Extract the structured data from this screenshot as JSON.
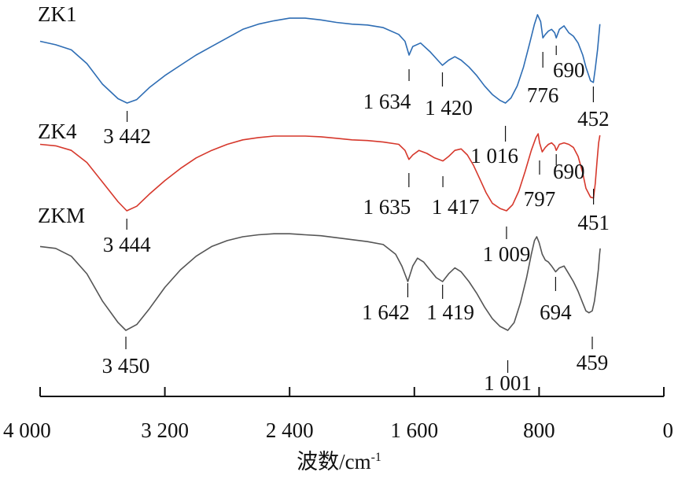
{
  "chart_data": {
    "type": "line",
    "xlabel": "波数/cm",
    "xlabel_superscript": "-1",
    "xlim": [
      4000,
      0
    ],
    "x_reversed": true,
    "x_ticks": [
      {
        "value": 4000,
        "label": "4 000"
      },
      {
        "value": 3200,
        "label": "3 200"
      },
      {
        "value": 2400,
        "label": "2 400"
      },
      {
        "value": 1600,
        "label": "1 600"
      },
      {
        "value": 800,
        "label": "800"
      },
      {
        "value": 0,
        "label": "0"
      }
    ],
    "grid": false,
    "series": [
      {
        "name": "ZK1",
        "color": "#2e6db4",
        "points": [
          [
            4000,
            0.72
          ],
          [
            3900,
            0.68
          ],
          [
            3800,
            0.62
          ],
          [
            3700,
            0.46
          ],
          [
            3600,
            0.22
          ],
          [
            3500,
            0.05
          ],
          [
            3442,
            0.0
          ],
          [
            3380,
            0.04
          ],
          [
            3300,
            0.18
          ],
          [
            3200,
            0.32
          ],
          [
            3100,
            0.44
          ],
          [
            3000,
            0.56
          ],
          [
            2900,
            0.66
          ],
          [
            2800,
            0.76
          ],
          [
            2700,
            0.86
          ],
          [
            2600,
            0.92
          ],
          [
            2500,
            0.96
          ],
          [
            2400,
            0.99
          ],
          [
            2300,
            0.99
          ],
          [
            2200,
            0.97
          ],
          [
            2100,
            0.94
          ],
          [
            2000,
            0.92
          ],
          [
            1900,
            0.91
          ],
          [
            1800,
            0.88
          ],
          [
            1700,
            0.8
          ],
          [
            1660,
            0.72
          ],
          [
            1634,
            0.56
          ],
          [
            1610,
            0.66
          ],
          [
            1560,
            0.7
          ],
          [
            1500,
            0.6
          ],
          [
            1450,
            0.5
          ],
          [
            1420,
            0.44
          ],
          [
            1380,
            0.5
          ],
          [
            1340,
            0.54
          ],
          [
            1300,
            0.5
          ],
          [
            1250,
            0.42
          ],
          [
            1200,
            0.32
          ],
          [
            1150,
            0.2
          ],
          [
            1100,
            0.1
          ],
          [
            1050,
            0.03
          ],
          [
            1016,
            0.0
          ],
          [
            980,
            0.06
          ],
          [
            940,
            0.2
          ],
          [
            900,
            0.42
          ],
          [
            860,
            0.7
          ],
          [
            830,
            0.92
          ],
          [
            810,
            1.03
          ],
          [
            790,
            0.95
          ],
          [
            776,
            0.76
          ],
          [
            760,
            0.8
          ],
          [
            740,
            0.84
          ],
          [
            720,
            0.86
          ],
          [
            700,
            0.82
          ],
          [
            690,
            0.76
          ],
          [
            670,
            0.86
          ],
          [
            640,
            0.9
          ],
          [
            610,
            0.82
          ],
          [
            580,
            0.78
          ],
          [
            550,
            0.7
          ],
          [
            520,
            0.56
          ],
          [
            500,
            0.42
          ],
          [
            470,
            0.26
          ],
          [
            452,
            0.24
          ],
          [
            440,
            0.4
          ],
          [
            425,
            0.62
          ],
          [
            415,
            0.82
          ],
          [
            410,
            0.92
          ]
        ],
        "peaks": [
          {
            "x": 3442,
            "label": "3 442"
          },
          {
            "x": 1634,
            "label": "1 634"
          },
          {
            "x": 1420,
            "label": "1 420"
          },
          {
            "x": 1016,
            "label": "1 016"
          },
          {
            "x": 776,
            "label": "776"
          },
          {
            "x": 690,
            "label": "690"
          },
          {
            "x": 452,
            "label": "452"
          }
        ]
      },
      {
        "name": "ZK4",
        "color": "#d6382c",
        "points": [
          [
            4000,
            0.88
          ],
          [
            3900,
            0.86
          ],
          [
            3800,
            0.8
          ],
          [
            3700,
            0.64
          ],
          [
            3600,
            0.38
          ],
          [
            3500,
            0.12
          ],
          [
            3444,
            0.0
          ],
          [
            3380,
            0.06
          ],
          [
            3300,
            0.22
          ],
          [
            3200,
            0.4
          ],
          [
            3100,
            0.56
          ],
          [
            3000,
            0.7
          ],
          [
            2900,
            0.8
          ],
          [
            2800,
            0.88
          ],
          [
            2700,
            0.94
          ],
          [
            2600,
            0.97
          ],
          [
            2500,
            0.99
          ],
          [
            2400,
            0.99
          ],
          [
            2300,
            0.99
          ],
          [
            2200,
            0.98
          ],
          [
            2100,
            0.96
          ],
          [
            2000,
            0.94
          ],
          [
            1900,
            0.93
          ],
          [
            1800,
            0.91
          ],
          [
            1700,
            0.88
          ],
          [
            1660,
            0.8
          ],
          [
            1635,
            0.68
          ],
          [
            1610,
            0.74
          ],
          [
            1570,
            0.8
          ],
          [
            1520,
            0.76
          ],
          [
            1470,
            0.7
          ],
          [
            1417,
            0.66
          ],
          [
            1380,
            0.72
          ],
          [
            1340,
            0.8
          ],
          [
            1300,
            0.82
          ],
          [
            1260,
            0.74
          ],
          [
            1220,
            0.6
          ],
          [
            1180,
            0.42
          ],
          [
            1140,
            0.24
          ],
          [
            1100,
            0.1
          ],
          [
            1050,
            0.03
          ],
          [
            1009,
            0.0
          ],
          [
            970,
            0.08
          ],
          [
            930,
            0.26
          ],
          [
            890,
            0.52
          ],
          [
            850,
            0.8
          ],
          [
            820,
            0.97
          ],
          [
            806,
            1.02
          ],
          [
            797,
            0.9
          ],
          [
            780,
            0.78
          ],
          [
            760,
            0.84
          ],
          [
            740,
            0.88
          ],
          [
            720,
            0.9
          ],
          [
            700,
            0.86
          ],
          [
            690,
            0.8
          ],
          [
            670,
            0.88
          ],
          [
            640,
            0.9
          ],
          [
            610,
            0.88
          ],
          [
            580,
            0.84
          ],
          [
            550,
            0.72
          ],
          [
            520,
            0.5
          ],
          [
            500,
            0.3
          ],
          [
            470,
            0.18
          ],
          [
            451,
            0.17
          ],
          [
            440,
            0.36
          ],
          [
            428,
            0.66
          ],
          [
            418,
            0.9
          ],
          [
            410,
            1.0
          ]
        ],
        "peaks": [
          {
            "x": 3444,
            "label": "3 444"
          },
          {
            "x": 1635,
            "label": "1 635"
          },
          {
            "x": 1417,
            "label": "1 417"
          },
          {
            "x": 1009,
            "label": "1 009"
          },
          {
            "x": 797,
            "label": "797"
          },
          {
            "x": 690,
            "label": "690"
          },
          {
            "x": 451,
            "label": "451"
          }
        ]
      },
      {
        "name": "ZKM",
        "color": "#555555",
        "points": [
          [
            4000,
            0.86
          ],
          [
            3900,
            0.84
          ],
          [
            3800,
            0.76
          ],
          [
            3700,
            0.58
          ],
          [
            3600,
            0.3
          ],
          [
            3500,
            0.08
          ],
          [
            3450,
            0.0
          ],
          [
            3380,
            0.06
          ],
          [
            3300,
            0.22
          ],
          [
            3200,
            0.44
          ],
          [
            3100,
            0.62
          ],
          [
            3000,
            0.76
          ],
          [
            2900,
            0.86
          ],
          [
            2800,
            0.92
          ],
          [
            2700,
            0.96
          ],
          [
            2600,
            0.98
          ],
          [
            2500,
            0.99
          ],
          [
            2400,
            0.99
          ],
          [
            2300,
            0.98
          ],
          [
            2200,
            0.97
          ],
          [
            2100,
            0.95
          ],
          [
            2000,
            0.93
          ],
          [
            1900,
            0.91
          ],
          [
            1800,
            0.88
          ],
          [
            1720,
            0.78
          ],
          [
            1680,
            0.66
          ],
          [
            1642,
            0.5
          ],
          [
            1610,
            0.66
          ],
          [
            1580,
            0.74
          ],
          [
            1540,
            0.7
          ],
          [
            1500,
            0.62
          ],
          [
            1460,
            0.54
          ],
          [
            1419,
            0.5
          ],
          [
            1380,
            0.58
          ],
          [
            1340,
            0.64
          ],
          [
            1300,
            0.6
          ],
          [
            1250,
            0.5
          ],
          [
            1200,
            0.38
          ],
          [
            1150,
            0.24
          ],
          [
            1100,
            0.12
          ],
          [
            1050,
            0.04
          ],
          [
            1001,
            0.0
          ],
          [
            960,
            0.08
          ],
          [
            920,
            0.28
          ],
          [
            880,
            0.54
          ],
          [
            850,
            0.78
          ],
          [
            830,
            0.92
          ],
          [
            815,
            0.96
          ],
          [
            800,
            0.9
          ],
          [
            780,
            0.78
          ],
          [
            760,
            0.72
          ],
          [
            740,
            0.7
          ],
          [
            720,
            0.66
          ],
          [
            694,
            0.6
          ],
          [
            670,
            0.64
          ],
          [
            640,
            0.66
          ],
          [
            610,
            0.58
          ],
          [
            580,
            0.5
          ],
          [
            550,
            0.4
          ],
          [
            520,
            0.28
          ],
          [
            500,
            0.2
          ],
          [
            480,
            0.18
          ],
          [
            459,
            0.2
          ],
          [
            445,
            0.3
          ],
          [
            432,
            0.46
          ],
          [
            420,
            0.62
          ],
          [
            412,
            0.78
          ],
          [
            408,
            0.84
          ]
        ],
        "peaks": [
          {
            "x": 3450,
            "label": "3 450"
          },
          {
            "x": 1642,
            "label": "1 642"
          },
          {
            "x": 1419,
            "label": "1 419"
          },
          {
            "x": 1001,
            "label": "1 001"
          },
          {
            "x": 694,
            "label": "694"
          },
          {
            "x": 459,
            "label": "459"
          }
        ]
      }
    ]
  }
}
